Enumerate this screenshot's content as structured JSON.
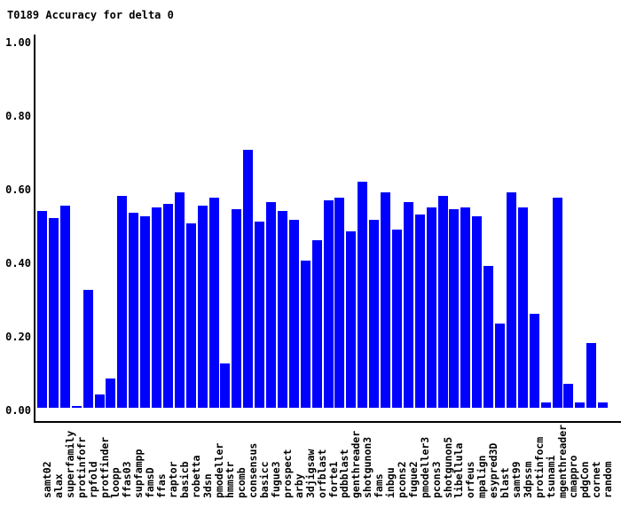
{
  "chart_data": {
    "type": "bar",
    "title": "T0189 Accuracy for delta 0",
    "categories": [
      "samt02",
      "alax",
      "superfamily",
      "protinfofr",
      "rpfold",
      "protfinder",
      "loopp",
      "ffas03",
      "supfampp",
      "famsD",
      "ffas",
      "raptor",
      "basicb",
      "robetta",
      "3dsn",
      "pmodeller",
      "hmmstr",
      "pcomb",
      "consensus",
      "basicc",
      "fugue3",
      "prospect",
      "arby",
      "3djigsaw",
      "orfblast",
      "forte1",
      "pdbblast",
      "genthreader",
      "shotgunon3",
      "fams",
      "inbgu",
      "pcons2",
      "fugue2",
      "pmodeller3",
      "pcons3",
      "shotgunon5",
      "libellula",
      "orfeus",
      "mpalign",
      "esypred3D",
      "blast",
      "samt99",
      "3dpssm",
      "protinfocm",
      "tsunami",
      "mgenthreader",
      "cmappro",
      "pdgCon",
      "cornet",
      "random"
    ],
    "values": [
      0.535,
      0.515,
      0.55,
      0.005,
      0.32,
      0.035,
      0.08,
      0.575,
      0.53,
      0.52,
      0.545,
      0.555,
      0.585,
      0.5,
      0.55,
      0.57,
      0.12,
      0.54,
      0.7,
      0.505,
      0.56,
      0.535,
      0.51,
      0.4,
      0.455,
      0.565,
      0.57,
      0.48,
      0.615,
      0.51,
      0.585,
      0.485,
      0.56,
      0.525,
      0.545,
      0.575,
      0.54,
      0.545,
      0.52,
      0.385,
      0.23,
      0.585,
      0.545,
      0.255,
      0.015,
      0.57,
      0.065,
      0.015,
      0.175,
      0.015
    ],
    "xlabel": "",
    "ylabel": "",
    "ylim": [
      0,
      1
    ],
    "yticks": [
      "0.00",
      "0.20",
      "0.40",
      "0.60",
      "0.80",
      "1.00"
    ],
    "bar_color": "#0000ff",
    "axis_color": "#000000",
    "background": "#ffffff",
    "grid": false,
    "legend": false
  }
}
